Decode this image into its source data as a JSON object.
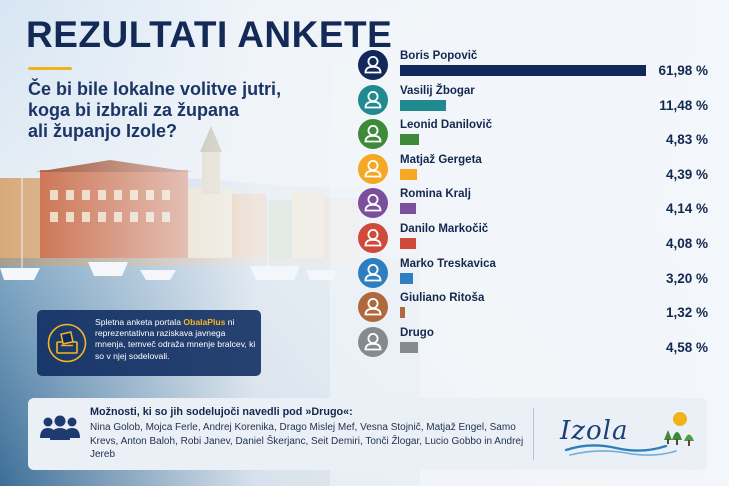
{
  "header": {
    "title": "REZULTATI ANKETE",
    "subtitle_lines": [
      "Če bi bile lokalne volitve jutri,",
      "koga bi izbrali za župana",
      "ali županjo Izole?"
    ]
  },
  "note": {
    "prefix": "Spletna anketa portala ",
    "portal": "ObalaPlus",
    "suffix": " ni reprezentativna raziskava javnega mnenja, temveč odraža mnenje bralcev, ki so v njej sodelovali."
  },
  "chart_data": {
    "type": "bar",
    "orientation": "horizontal",
    "categories": [
      "Boris Popovič",
      "Vasilij Žbogar",
      "Leonid Danilovič",
      "Matjaž Gergeta",
      "Romina Kralj",
      "Danilo Markočič",
      "Marko Treskavica",
      "Giuliano Ritoša",
      "Drugo"
    ],
    "values": [
      61.98,
      11.48,
      4.83,
      4.39,
      4.14,
      4.08,
      3.2,
      1.32,
      4.58
    ],
    "value_labels": [
      "61,98 %",
      "11,48 %",
      "4,83 %",
      "4,39 %",
      "4,14 %",
      "4,08 %",
      "3,20 %",
      "1,32 %",
      "4,58 %"
    ],
    "colors": [
      "#13285a",
      "#1f8a8f",
      "#3f8a3a",
      "#f4a823",
      "#7b4f9c",
      "#cf4a3b",
      "#2f7fc0",
      "#b0693c",
      "#858a8f"
    ],
    "unit": "%",
    "grid": false,
    "legend": "none"
  },
  "other": {
    "heading": "Možnosti, ki so jih sodelujoči navedli pod »Drugo«:",
    "names": "Nina Golob, Mojca Ferle, Andrej Korenika, Drago Mislej Mef, Vesna Stojnič, Matjaž Engel, Samo Krevs, Anton Baloh, Robi Janev, Daniel Škerjanc, Seit Demiri, Tonči Žlogar, Lucio Gobbo in Andrej Jereb"
  },
  "logo": {
    "text": "Izola"
  },
  "icons": {
    "note": "ballot-box-icon",
    "other": "people-group-icon",
    "candidate": "person-icon"
  }
}
